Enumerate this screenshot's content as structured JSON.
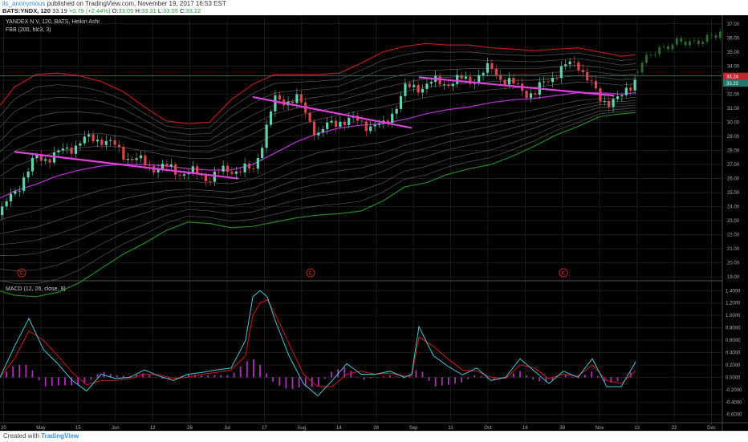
{
  "header": {
    "user": "ils_anonymous",
    "published": "published on TradingView.com, November 19, 2017 16:53 EST",
    "symbol": "BATS:YNDX, 120",
    "last": "33.19",
    "change": "+0.79 (+2.44%)",
    "o_label": "O:",
    "o_value": "33.05",
    "h_label": "H:",
    "h_value": "33.31",
    "l_label": "L:",
    "l_value": "33.05",
    "c_label": "C:",
    "c_value": "33.22"
  },
  "main_pane": {
    "title": "YANDEX N V, 120, BATS, Heikin Ashi",
    "indicator": "FBB (200, hlc3, 3)",
    "price_tag_1": "33.24",
    "price_tag_2": "33.22",
    "event_marker": "E"
  },
  "macd_pane": {
    "indicator": "MACD (12, 26, close, 9)"
  },
  "footer": {
    "created_with": "Created with",
    "brand": "TradingView"
  },
  "colors": {
    "up_candle": "#5fd0b0",
    "down_candle": "#d84a4a",
    "fib_upper": "#c01818",
    "fib_lower": "#1f8a1f",
    "basis": "#b02cc8",
    "trendline": "#e040e0",
    "macd_line": "#40c8d8",
    "signal_line": "#d01818",
    "histogram": "#b030b8",
    "price_line": "#2a8a80"
  },
  "chart_data": [
    {
      "type": "line",
      "title": "YANDEX N V, 120, BATS, Heikin Ashi",
      "x_ticks": [
        "20",
        "May",
        "15",
        "Jun",
        "12",
        "26",
        "Jul",
        "17",
        "Aug",
        "14",
        "28",
        "Sep",
        "11",
        "Oct",
        "16",
        "30",
        "Nov",
        "13",
        "22",
        "Dec"
      ],
      "y_ticks": [
        19.0,
        20.0,
        21.0,
        22.0,
        23.0,
        24.0,
        25.0,
        26.0,
        27.0,
        28.0,
        29.0,
        30.0,
        31.0,
        32.0,
        33.0,
        34.0,
        35.0,
        36.0,
        37.0
      ],
      "ylim": [
        18.9,
        37.5
      ],
      "x": [
        0,
        2,
        5,
        8,
        11,
        14,
        17,
        20,
        23,
        26,
        29,
        32,
        35,
        38,
        41,
        44,
        47,
        50,
        53,
        56,
        59,
        62,
        65,
        68,
        71,
        74,
        77,
        80,
        83,
        86,
        88
      ],
      "series": [
        {
          "name": "close",
          "values": [
            23.4,
            25.1,
            27.4,
            27.7,
            28.6,
            28.9,
            27.8,
            27.0,
            26.7,
            26.4,
            26.1,
            26.7,
            26.5,
            31.5,
            31.7,
            29.2,
            30.2,
            30.0,
            29.6,
            32.3,
            32.7,
            32.9,
            33.0,
            33.8,
            32.6,
            32.0,
            33.6,
            34.3,
            31.6,
            31.6,
            33.3
          ]
        }
      ],
      "basis_values": [
        24.6,
        25.1,
        25.6,
        26.2,
        26.6,
        26.9,
        27.0,
        27.0,
        26.9,
        26.7,
        26.6,
        26.6,
        27.0,
        27.8,
        28.6,
        29.2,
        29.6,
        29.8,
        29.9,
        30.2,
        30.6,
        30.9,
        31.1,
        31.4,
        31.6,
        31.7,
        31.9,
        32.1,
        32.1,
        32.0,
        32.1
      ],
      "fib_upper_values": [
        31.2,
        32.5,
        33.4,
        33.5,
        33.3,
        32.9,
        32.2,
        31.1,
        30.1,
        29.9,
        30.0,
        31.6,
        32.7,
        33.4,
        33.4,
        33.4,
        33.5,
        34.2,
        35.0,
        35.4,
        35.6,
        35.5,
        35.5,
        35.3,
        35.2,
        35.1,
        35.2,
        35.3,
        35.0,
        34.7,
        34.8
      ],
      "fib_lower_values": [
        18.0,
        17.7,
        17.6,
        17.9,
        18.6,
        19.6,
        20.6,
        21.4,
        22.3,
        22.9,
        22.8,
        22.5,
        22.6,
        22.9,
        23.2,
        23.4,
        23.5,
        23.7,
        24.4,
        25.4,
        25.7,
        26.3,
        26.7,
        27.0,
        27.6,
        28.3,
        29.1,
        29.7,
        30.4,
        30.6,
        30.7
      ],
      "trendlines": [
        {
          "x": [
            2,
            33
          ],
          "y": [
            27.9,
            26.0
          ]
        },
        {
          "x": [
            35,
            57
          ],
          "y": [
            31.8,
            29.6
          ]
        },
        {
          "x": [
            58,
            85
          ],
          "y": [
            33.2,
            31.9
          ]
        }
      ],
      "projection": {
        "x": [
          88,
          90,
          92,
          94,
          96,
          98,
          100
        ],
        "values": [
          33.6,
          34.9,
          35.3,
          35.8,
          35.6,
          36.0,
          36.5
        ]
      },
      "event_x": [
        3,
        43,
        78
      ]
    },
    {
      "type": "line",
      "title": "MACD (12, 26, close, 9)",
      "y_ticks": [
        -0.6,
        -0.4,
        -0.2,
        0.0,
        0.2,
        0.4,
        0.6,
        0.8,
        1.0,
        1.2,
        1.4
      ],
      "ylim": [
        -0.72,
        1.52
      ],
      "x": [
        0,
        2,
        4,
        6,
        8,
        10,
        12,
        14,
        16,
        18,
        20,
        22,
        24,
        26,
        28,
        30,
        32,
        34,
        35,
        36,
        37,
        38,
        40,
        42,
        44,
        46,
        48,
        50,
        52,
        54,
        56,
        57,
        58,
        60,
        62,
        64,
        66,
        68,
        70,
        72,
        74,
        76,
        78,
        80,
        82,
        84,
        86,
        88
      ],
      "series": [
        {
          "name": "MACD",
          "values": [
            0.0,
            0.5,
            0.95,
            0.45,
            0.22,
            -0.05,
            -0.22,
            0.05,
            -0.02,
            0.0,
            0.12,
            0.02,
            -0.05,
            0.05,
            0.08,
            0.12,
            0.15,
            0.6,
            1.3,
            1.4,
            1.3,
            0.95,
            0.35,
            -0.1,
            -0.3,
            -0.05,
            0.22,
            0.05,
            0.05,
            0.1,
            0.0,
            0.05,
            0.82,
            0.35,
            0.18,
            0.04,
            0.15,
            -0.05,
            0.0,
            0.3,
            0.1,
            -0.1,
            0.1,
            0.0,
            0.3,
            -0.15,
            -0.15,
            0.25
          ]
        },
        {
          "name": "Signal",
          "values": [
            0.0,
            0.3,
            0.75,
            0.6,
            0.35,
            0.08,
            -0.12,
            -0.05,
            -0.05,
            -0.02,
            0.05,
            0.04,
            -0.02,
            0.0,
            0.05,
            0.08,
            0.12,
            0.35,
            1.0,
            1.2,
            1.25,
            1.05,
            0.55,
            0.05,
            -0.15,
            -0.15,
            0.05,
            0.1,
            0.05,
            0.07,
            0.02,
            0.02,
            0.65,
            0.5,
            0.3,
            0.12,
            0.1,
            0.0,
            -0.02,
            0.2,
            0.15,
            -0.02,
            0.05,
            0.02,
            0.2,
            -0.05,
            -0.1,
            0.1
          ]
        }
      ]
    }
  ]
}
